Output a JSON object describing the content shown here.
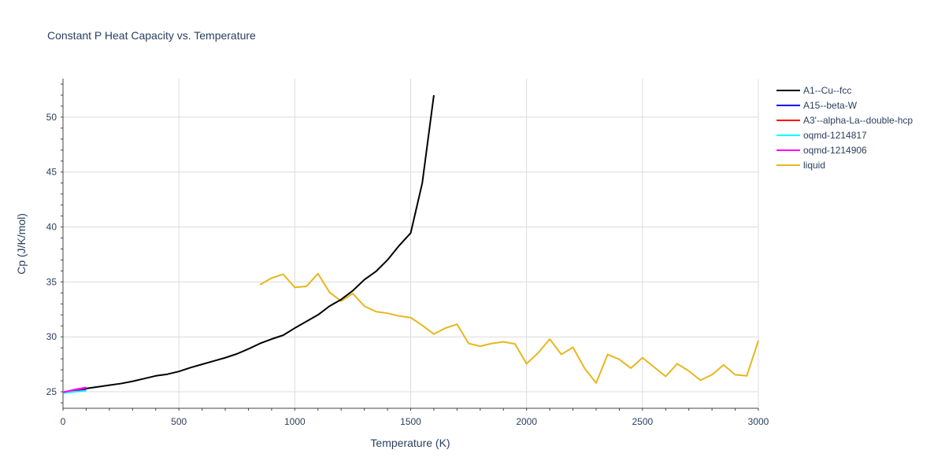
{
  "chart_data": {
    "type": "line",
    "title": "Constant P Heat Capacity vs. Temperature",
    "xlabel": "Temperature (K)",
    "ylabel": "Cp (J/K/mol)",
    "xlim": [
      0,
      3000
    ],
    "ylim": [
      23.5,
      53.5
    ],
    "xticks": [
      0,
      500,
      1000,
      1500,
      2000,
      2500,
      3000
    ],
    "yticks": [
      25,
      30,
      35,
      40,
      45,
      50
    ],
    "grid": true,
    "legend_position": "right",
    "series": [
      {
        "name": "A1--Cu--fcc",
        "color": "#000000",
        "x": [
          0,
          50,
          100,
          150,
          200,
          250,
          300,
          350,
          400,
          450,
          500,
          550,
          600,
          650,
          700,
          750,
          800,
          850,
          900,
          950,
          1000,
          1050,
          1100,
          1150,
          1200,
          1250,
          1300,
          1350,
          1400,
          1450,
          1500,
          1550,
          1600
        ],
        "y": [
          24.95,
          25.1,
          25.3,
          25.45,
          25.6,
          25.75,
          25.95,
          26.2,
          26.45,
          26.6,
          26.85,
          27.2,
          27.5,
          27.8,
          28.1,
          28.45,
          28.9,
          29.4,
          29.8,
          30.15,
          30.8,
          31.4,
          32.0,
          32.8,
          33.4,
          34.2,
          35.2,
          35.95,
          37.0,
          38.3,
          39.45,
          44.0,
          52.0
        ]
      },
      {
        "name": "A15--beta-W",
        "color": "#0000ff",
        "x": [
          0,
          50,
          100
        ],
        "y": [
          24.9,
          25.05,
          25.2
        ]
      },
      {
        "name": "A3'--alpha-La--double-hcp",
        "color": "#ff0000",
        "x": [
          0,
          50,
          100
        ],
        "y": [
          24.95,
          25.15,
          25.35
        ]
      },
      {
        "name": "oqmd-1214817",
        "color": "#00ffff",
        "x": [
          0,
          50,
          100
        ],
        "y": [
          24.9,
          25.0,
          25.1
        ]
      },
      {
        "name": "oqmd-1214906",
        "color": "#ff00ff",
        "x": [
          0,
          50,
          100
        ],
        "y": [
          24.95,
          25.2,
          25.4
        ]
      },
      {
        "name": "liquid",
        "color": "#e6b71e",
        "x": [
          850,
          900,
          950,
          1000,
          1050,
          1100,
          1150,
          1200,
          1250,
          1300,
          1350,
          1400,
          1450,
          1500,
          1550,
          1600,
          1650,
          1700,
          1750,
          1800,
          1850,
          1900,
          1950,
          2000,
          2050,
          2100,
          2150,
          2200,
          2250,
          2300,
          2350,
          2400,
          2450,
          2500,
          2550,
          2600,
          2650,
          2700,
          2750,
          2800,
          2850,
          2900,
          2950,
          3000
        ],
        "y": [
          34.75,
          35.35,
          35.7,
          34.5,
          34.6,
          35.75,
          34.05,
          33.25,
          33.95,
          32.8,
          32.3,
          32.15,
          31.9,
          31.75,
          31.05,
          30.25,
          30.8,
          31.15,
          29.4,
          29.15,
          29.4,
          29.55,
          29.35,
          27.55,
          28.55,
          29.8,
          28.4,
          29.05,
          27.15,
          25.8,
          28.4,
          27.95,
          27.15,
          28.1,
          27.25,
          26.4,
          27.55,
          26.9,
          26.05,
          26.55,
          27.45,
          26.55,
          26.45,
          29.65
        ]
      }
    ]
  }
}
